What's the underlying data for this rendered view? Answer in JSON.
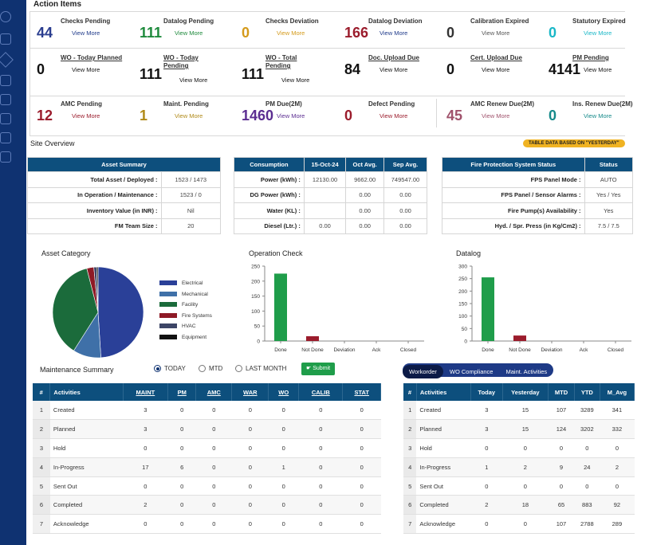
{
  "action_items": {
    "title": "Action Items",
    "row1": [
      {
        "count": "44",
        "label": "Checks Pending",
        "link": "View More",
        "color": "#2a3d8f",
        "link_color": "#1f3a8a"
      },
      {
        "count": "111",
        "label": "Datalog Pending",
        "link": "View More",
        "color": "#1e8a3c",
        "link_color": "#1e8a3c"
      },
      {
        "count": "0",
        "label": "Checks Deviation",
        "link": "View More",
        "color": "#d49a1a",
        "link_color": "#d49a1a"
      },
      {
        "count": "166",
        "label": "Datalog Deviation",
        "link": "View More",
        "color": "#9b1c2c",
        "link_color": "#1f3a8a"
      },
      {
        "count": "0",
        "label": "Calibration Expired",
        "link": "View More",
        "color": "#333333",
        "link_color": "#555555"
      },
      {
        "count": "0",
        "label": "Statutory Expired",
        "link": "View More",
        "color": "#19b7c7",
        "link_color": "#19b7c7"
      }
    ],
    "row2": [
      {
        "count": "0",
        "label": "WO - Today Planned",
        "link": "View More"
      },
      {
        "count": "111",
        "label": "WO - Today",
        "label2": "Pending",
        "link": "View More"
      },
      {
        "count": "111",
        "label": "WO - Total",
        "label2": "Pending",
        "link": "View More"
      },
      {
        "count": "84",
        "label": "Doc. Upload Due",
        "link": "View More"
      },
      {
        "count": "0",
        "label": "Cert. Upload Due",
        "link": "View More"
      },
      {
        "count": "4141",
        "label": "PM Pending",
        "link": "View More"
      }
    ],
    "row3": [
      {
        "count": "12",
        "label": "AMC Pending",
        "link": "View More",
        "color": "#9b1c2c",
        "link_color": "#9b1c2c"
      },
      {
        "count": "1",
        "label": "Maint. Pending",
        "link": "View More",
        "color": "#b08a18",
        "link_color": "#b08a18"
      },
      {
        "count": "1460",
        "label": "PM Due(2M)",
        "link": "View More",
        "color": "#5b2d91",
        "link_color": "#5b2d91"
      },
      {
        "count": "0",
        "label": "Defect Pending",
        "link": "View More",
        "color": "#9b1c2c",
        "link_color": "#9b1c2c"
      },
      {
        "count": "45",
        "label": "AMC Renew Due(2M)",
        "link": "View More",
        "color": "#a0526c",
        "link_color": "#a0526c"
      },
      {
        "count": "0",
        "label": "Ins. Renew Due(2M)",
        "link": "View More",
        "color": "#158a8a",
        "link_color": "#158a8a"
      }
    ]
  },
  "site_overview": {
    "title": "Site Overview",
    "badge": "TABLE DATA BASED ON \"YESTERDAY\"",
    "asset_summary": {
      "header": "Asset Summary",
      "rows": [
        {
          "k": "Total Asset / Deployed :",
          "v": "1523 / 1473"
        },
        {
          "k": "In Operation / Maintenance :",
          "v": "1523 / 0"
        },
        {
          "k": "Inventory Value (in INR) :",
          "v": "Nil"
        },
        {
          "k": "FM Team Size :",
          "v": "20"
        }
      ]
    },
    "consumption": {
      "headers": [
        "Consumption",
        "15-Oct-24",
        "Oct Avg.",
        "Sep Avg."
      ],
      "rows": [
        [
          "Power (kWh) :",
          "12130.00",
          "9662.00",
          "749547.00"
        ],
        [
          "DG Power (kWh) :",
          "",
          "0.00",
          "0.00"
        ],
        [
          "Water (KL) :",
          "",
          "0.00",
          "0.00"
        ],
        [
          "Diesel (Ltr.) :",
          "0.00",
          "0.00",
          "0.00"
        ]
      ]
    },
    "fire_protection": {
      "headers": [
        "Fire Protection System Status",
        "Status"
      ],
      "rows": [
        [
          "FPS Panel Mode :",
          "AUTO"
        ],
        [
          "FPS Panel / Sensor Alarms :",
          "Yes / Yes"
        ],
        [
          "Fire Pump(s) Availability :",
          "Yes"
        ],
        [
          "Hyd. / Spr. Press (in Kg/Cm2) :",
          "7.5 / 7.5"
        ]
      ]
    }
  },
  "chart_data": [
    {
      "type": "pie",
      "title": "Asset Category",
      "categories": [
        "Electrical",
        "Mechanical",
        "Facility",
        "Fire Systems",
        "HVAC",
        "Equipment"
      ],
      "values": [
        49,
        10,
        37,
        2.5,
        1,
        0.5
      ],
      "colors": [
        "#2a4098",
        "#3f70a8",
        "#1b6b3b",
        "#8e1a26",
        "#3c4566",
        "#111111"
      ],
      "legend": "right"
    },
    {
      "type": "bar",
      "title": "Operation Check",
      "categories": [
        "Done",
        "Not Done",
        "Deviation",
        "Ack",
        "Closed"
      ],
      "values": [
        225,
        16,
        0,
        0,
        0
      ],
      "colors": [
        "#1f9d4a",
        "#9b1c2c",
        "#d49a1a",
        "#1f3a8a",
        "#555555"
      ],
      "ylim": [
        0,
        250
      ],
      "yticks": [
        "0",
        "50",
        "100",
        "150",
        "200",
        "250"
      ]
    },
    {
      "type": "bar",
      "title": "Datalog",
      "categories": [
        "Done",
        "Not Done",
        "Deviation",
        "Ack",
        "Closed"
      ],
      "values": [
        255,
        22,
        0,
        0,
        0
      ],
      "colors": [
        "#1f9d4a",
        "#9b1c2c",
        "#d49a1a",
        "#1f3a8a",
        "#555555"
      ],
      "ylim": [
        0,
        300
      ],
      "yticks": [
        "0",
        "50",
        "100",
        "150",
        "200",
        "250",
        "300"
      ]
    }
  ],
  "maintenance": {
    "title": "Maintenance Summary",
    "radios": [
      "TODAY",
      "MTD",
      "LAST MONTH"
    ],
    "selected": "TODAY",
    "submit": "Submit",
    "headers": [
      "#",
      "Activities",
      "MAINT",
      "PM",
      "AMC",
      "WAR",
      "WO",
      "CALIB",
      "STAT"
    ],
    "rows": [
      [
        "1",
        "Created",
        "3",
        "0",
        "0",
        "0",
        "0",
        "0",
        "0"
      ],
      [
        "2",
        "Planned",
        "3",
        "0",
        "0",
        "0",
        "0",
        "0",
        "0"
      ],
      [
        "3",
        "Hold",
        "0",
        "0",
        "0",
        "0",
        "0",
        "0",
        "0"
      ],
      [
        "4",
        "In-Progress",
        "17",
        "6",
        "0",
        "0",
        "1",
        "0",
        "0"
      ],
      [
        "5",
        "Sent Out",
        "0",
        "0",
        "0",
        "0",
        "0",
        "0",
        "0"
      ],
      [
        "6",
        "Completed",
        "2",
        "0",
        "0",
        "0",
        "0",
        "0",
        "0"
      ],
      [
        "7",
        "Acknowledge",
        "0",
        "0",
        "0",
        "0",
        "0",
        "0",
        "0"
      ]
    ]
  },
  "workorder": {
    "tabs": [
      "Workorder",
      "WO Compliance",
      "Maint. Activities"
    ],
    "active_tab": "Workorder",
    "headers": [
      "#",
      "Activities",
      "Today",
      "Yesterday",
      "MTD",
      "YTD",
      "M_Avg"
    ],
    "rows": [
      [
        "1",
        "Created",
        "3",
        "15",
        "107",
        "3289",
        "341"
      ],
      [
        "2",
        "Planned",
        "3",
        "15",
        "124",
        "3202",
        "332"
      ],
      [
        "3",
        "Hold",
        "0",
        "0",
        "0",
        "0",
        "0"
      ],
      [
        "4",
        "In-Progress",
        "1",
        "2",
        "9",
        "24",
        "2"
      ],
      [
        "5",
        "Sent Out",
        "0",
        "0",
        "0",
        "0",
        "0"
      ],
      [
        "6",
        "Completed",
        "2",
        "18",
        "65",
        "883",
        "92"
      ],
      [
        "7",
        "Acknowledge",
        "0",
        "0",
        "107",
        "2788",
        "289"
      ]
    ]
  }
}
